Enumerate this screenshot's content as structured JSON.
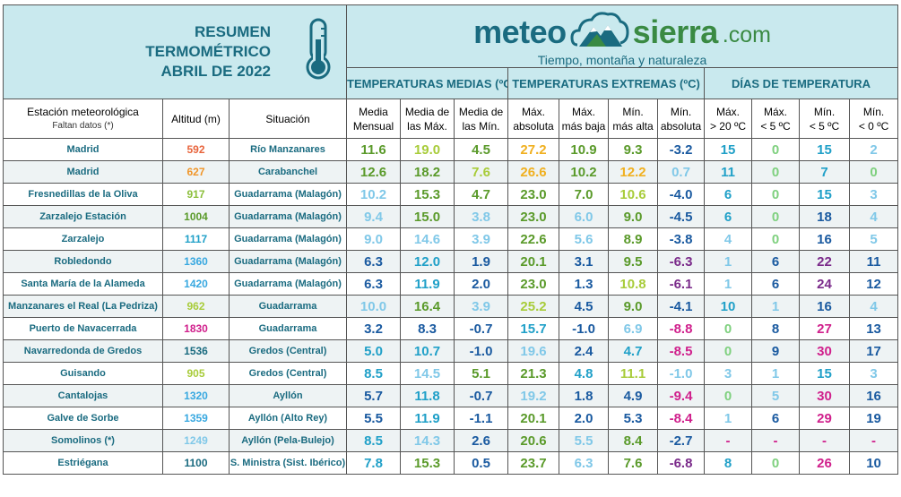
{
  "title": {
    "line1": "RESUMEN",
    "line2": "TERMOMÉTRICO",
    "line3": "ABRIL DE 2022"
  },
  "logo": {
    "meteo": "meteo",
    "sierra": "sierra",
    "com": ".com",
    "tagline": "Tiempo, montaña y naturaleza",
    "icon": "mountain-cloud-icon"
  },
  "groups": {
    "medias": "TEMPERATURAS MEDIAS (ºC)",
    "extremas": "TEMPERATURAS EXTREMAS (ºC)",
    "dias": "DÍAS DE TEMPERATURA"
  },
  "columns": {
    "estacion": "Estación meteorológica",
    "estacion_sub": "Faltan datos (*)",
    "altitud": "Altitud (m)",
    "situacion": "Situación",
    "c1a": "Media",
    "c1b": "Mensual",
    "c2a": "Media de",
    "c2b": "las Máx.",
    "c3a": "Media de",
    "c3b": "las Mín.",
    "c4a": "Máx.",
    "c4b": "absoluta",
    "c5a": "Máx.",
    "c5b": "más baja",
    "c6a": "Mín.",
    "c6b": "más alta",
    "c7a": "Mín.",
    "c7b": "absoluta",
    "c8a": "Máx.",
    "c8b": "> 20 ºC",
    "c9a": "Máx.",
    "c9b": "< 5 ºC",
    "c10a": "Mín.",
    "c10b": "< 5 ºC",
    "c11a": "Mín.",
    "c11b": "< 0 ºC"
  },
  "colors": {
    "title": "#1a6b80",
    "header_bg": "#c9e9ee",
    "dark_blue": "#1a6b80",
    "alt_orange1": "#e8643c",
    "alt_orange2": "#f0962a",
    "alt_green": "#8cbf3c",
    "alt_blue": "#38a8e0",
    "alt_magenta": "#d0208c"
  },
  "rows": [
    {
      "station": "Madrid",
      "alt": "592",
      "alt_color": "#e8643c",
      "sit": "Río Manzanares",
      "v": [
        "11.6",
        "19.0",
        "4.5",
        "27.2",
        "10.9",
        "9.3",
        "-3.2",
        "15",
        "0",
        "15",
        "2"
      ],
      "c": [
        "#5a9a2a",
        "#a8cc3a",
        "#5a9a2a",
        "#f0b020",
        "#5a9a2a",
        "#5a9a2a",
        "#1a5aa0",
        "#20a0c8",
        "#7ed07e",
        "#20a0c8",
        "#80c8e8"
      ]
    },
    {
      "station": "Madrid",
      "alt": "627",
      "alt_color": "#f0962a",
      "sit": "Carabanchel",
      "v": [
        "12.6",
        "18.2",
        "7.6",
        "26.6",
        "10.2",
        "12.2",
        "0.7",
        "11",
        "0",
        "7",
        "0"
      ],
      "c": [
        "#5a9a2a",
        "#5a9a2a",
        "#a8cc3a",
        "#f0b020",
        "#5a9a2a",
        "#f0b020",
        "#80c8e8",
        "#20a0c8",
        "#7ed07e",
        "#20a0c8",
        "#7ed07e"
      ]
    },
    {
      "station": "Fresnedillas de la Oliva",
      "alt": "917",
      "alt_color": "#8cbf3c",
      "sit": "Guadarrama (Malagón)",
      "v": [
        "10.2",
        "15.3",
        "4.7",
        "23.0",
        "7.0",
        "10.6",
        "-4.0",
        "6",
        "0",
        "15",
        "3"
      ],
      "c": [
        "#80c8e8",
        "#5a9a2a",
        "#5a9a2a",
        "#5a9a2a",
        "#5a9a2a",
        "#a8cc3a",
        "#1a5aa0",
        "#20a0c8",
        "#7ed07e",
        "#20a0c8",
        "#80c8e8"
      ]
    },
    {
      "station": "Zarzalejo Estación",
      "alt": "1004",
      "alt_color": "#5a9a2a",
      "sit": "Guadarrama (Malagón)",
      "v": [
        "9.4",
        "15.0",
        "3.8",
        "23.0",
        "6.0",
        "9.0",
        "-4.5",
        "6",
        "0",
        "18",
        "4"
      ],
      "c": [
        "#80c8e8",
        "#5a9a2a",
        "#80c8e8",
        "#5a9a2a",
        "#80c8e8",
        "#5a9a2a",
        "#1a5aa0",
        "#20a0c8",
        "#7ed07e",
        "#1a5aa0",
        "#80c8e8"
      ]
    },
    {
      "station": "Zarzalejo",
      "alt": "1117",
      "alt_color": "#20a0c8",
      "sit": "Guadarrama (Malagón)",
      "v": [
        "9.0",
        "14.6",
        "3.9",
        "22.6",
        "5.6",
        "8.9",
        "-3.8",
        "4",
        "0",
        "16",
        "5"
      ],
      "c": [
        "#80c8e8",
        "#80c8e8",
        "#80c8e8",
        "#5a9a2a",
        "#80c8e8",
        "#5a9a2a",
        "#1a5aa0",
        "#80c8e8",
        "#7ed07e",
        "#1a5aa0",
        "#80c8e8"
      ]
    },
    {
      "station": "Robledondo",
      "alt": "1360",
      "alt_color": "#38a8e0",
      "sit": "Guadarrama (Malagón)",
      "v": [
        "6.3",
        "12.0",
        "1.9",
        "20.1",
        "3.1",
        "9.5",
        "-6.3",
        "1",
        "6",
        "22",
        "11"
      ],
      "c": [
        "#1a5aa0",
        "#20a0c8",
        "#1a5aa0",
        "#5a9a2a",
        "#1a5aa0",
        "#5a9a2a",
        "#7a2a8a",
        "#80c8e8",
        "#1a5aa0",
        "#7a2a8a",
        "#1a5aa0"
      ]
    },
    {
      "station": "Santa María de la Alameda",
      "alt": "1420",
      "alt_color": "#38a8e0",
      "sit": "Guadarrama (Malagón)",
      "v": [
        "6.3",
        "11.9",
        "2.0",
        "23.0",
        "1.3",
        "10.8",
        "-6.1",
        "1",
        "6",
        "24",
        "12"
      ],
      "c": [
        "#1a5aa0",
        "#20a0c8",
        "#1a5aa0",
        "#5a9a2a",
        "#1a5aa0",
        "#a8cc3a",
        "#7a2a8a",
        "#80c8e8",
        "#1a5aa0",
        "#7a2a8a",
        "#1a5aa0"
      ]
    },
    {
      "station": "Manzanares el Real (La Pedriza)",
      "alt": "962",
      "alt_color": "#a8cc3a",
      "sit": "Guadarrama",
      "v": [
        "10.0",
        "16.4",
        "3.9",
        "25.2",
        "4.5",
        "9.0",
        "-4.1",
        "10",
        "1",
        "16",
        "4"
      ],
      "c": [
        "#80c8e8",
        "#5a9a2a",
        "#80c8e8",
        "#a8cc3a",
        "#1a5aa0",
        "#5a9a2a",
        "#1a5aa0",
        "#20a0c8",
        "#80c8e8",
        "#1a5aa0",
        "#80c8e8"
      ]
    },
    {
      "station": "Puerto de Navacerrada",
      "alt": "1830",
      "alt_color": "#d0208c",
      "sit": "Guadarrama",
      "v": [
        "3.2",
        "8.3",
        "-0.7",
        "15.7",
        "-1.0",
        "6.9",
        "-8.8",
        "0",
        "8",
        "27",
        "13"
      ],
      "c": [
        "#1a5aa0",
        "#1a5aa0",
        "#1a5aa0",
        "#20a0c8",
        "#1a5aa0",
        "#80c8e8",
        "#d0208c",
        "#7ed07e",
        "#1a5aa0",
        "#d0208c",
        "#1a5aa0"
      ]
    },
    {
      "station": "Navarredonda de Gredos",
      "alt": "1536",
      "alt_color": "#1a6b80",
      "sit": "Gredos (Central)",
      "v": [
        "5.0",
        "10.7",
        "-1.0",
        "19.6",
        "2.4",
        "4.7",
        "-8.5",
        "0",
        "9",
        "30",
        "17"
      ],
      "c": [
        "#20a0c8",
        "#20a0c8",
        "#1a5aa0",
        "#80c8e8",
        "#1a5aa0",
        "#20a0c8",
        "#d0208c",
        "#7ed07e",
        "#1a5aa0",
        "#d0208c",
        "#1a5aa0"
      ]
    },
    {
      "station": "Guisando",
      "alt": "905",
      "alt_color": "#a8cc3a",
      "sit": "Gredos (Central)",
      "v": [
        "8.5",
        "14.5",
        "5.1",
        "21.3",
        "4.8",
        "11.1",
        "-1.0",
        "3",
        "1",
        "15",
        "3"
      ],
      "c": [
        "#20a0c8",
        "#80c8e8",
        "#5a9a2a",
        "#5a9a2a",
        "#20a0c8",
        "#a8cc3a",
        "#80c8e8",
        "#80c8e8",
        "#80c8e8",
        "#20a0c8",
        "#80c8e8"
      ]
    },
    {
      "station": "Cantalojas",
      "alt": "1320",
      "alt_color": "#38a8e0",
      "sit": "Ayllón",
      "v": [
        "5.7",
        "11.8",
        "-0.7",
        "19.2",
        "1.8",
        "4.9",
        "-9.4",
        "0",
        "5",
        "30",
        "16"
      ],
      "c": [
        "#1a5aa0",
        "#20a0c8",
        "#1a5aa0",
        "#80c8e8",
        "#1a5aa0",
        "#1a5aa0",
        "#d0208c",
        "#7ed07e",
        "#80c8e8",
        "#d0208c",
        "#1a5aa0"
      ]
    },
    {
      "station": "Galve de Sorbe",
      "alt": "1359",
      "alt_color": "#38a8e0",
      "sit": "Ayllón (Alto Rey)",
      "v": [
        "5.5",
        "11.9",
        "-1.1",
        "20.1",
        "2.0",
        "5.3",
        "-8.4",
        "1",
        "6",
        "29",
        "19"
      ],
      "c": [
        "#1a5aa0",
        "#20a0c8",
        "#1a5aa0",
        "#5a9a2a",
        "#1a5aa0",
        "#1a5aa0",
        "#d0208c",
        "#80c8e8",
        "#1a5aa0",
        "#d0208c",
        "#1a5aa0"
      ]
    },
    {
      "station": "Somolinos (*)",
      "alt": "1249",
      "alt_color": "#80c8e8",
      "sit": "Ayllón (Pela-Bulejo)",
      "v": [
        "8.5",
        "14.3",
        "2.6",
        "20.6",
        "5.5",
        "8.4",
        "-2.7",
        "-",
        "-",
        "-",
        "-"
      ],
      "c": [
        "#20a0c8",
        "#80c8e8",
        "#1a5aa0",
        "#5a9a2a",
        "#80c8e8",
        "#5a9a2a",
        "#1a5aa0",
        "#d0208c",
        "#d0208c",
        "#d0208c",
        "#d0208c"
      ]
    },
    {
      "station": "Estriégana",
      "alt": "1100",
      "alt_color": "#1a6b80",
      "sit": "S. Ministra (Sist. Ibérico)",
      "v": [
        "7.8",
        "15.3",
        "0.5",
        "23.7",
        "6.3",
        "7.6",
        "-6.8",
        "8",
        "0",
        "26",
        "10"
      ],
      "c": [
        "#20a0c8",
        "#5a9a2a",
        "#1a5aa0",
        "#5a9a2a",
        "#80c8e8",
        "#5a9a2a",
        "#7a2a8a",
        "#20a0c8",
        "#7ed07e",
        "#d0208c",
        "#1a5aa0"
      ]
    }
  ]
}
